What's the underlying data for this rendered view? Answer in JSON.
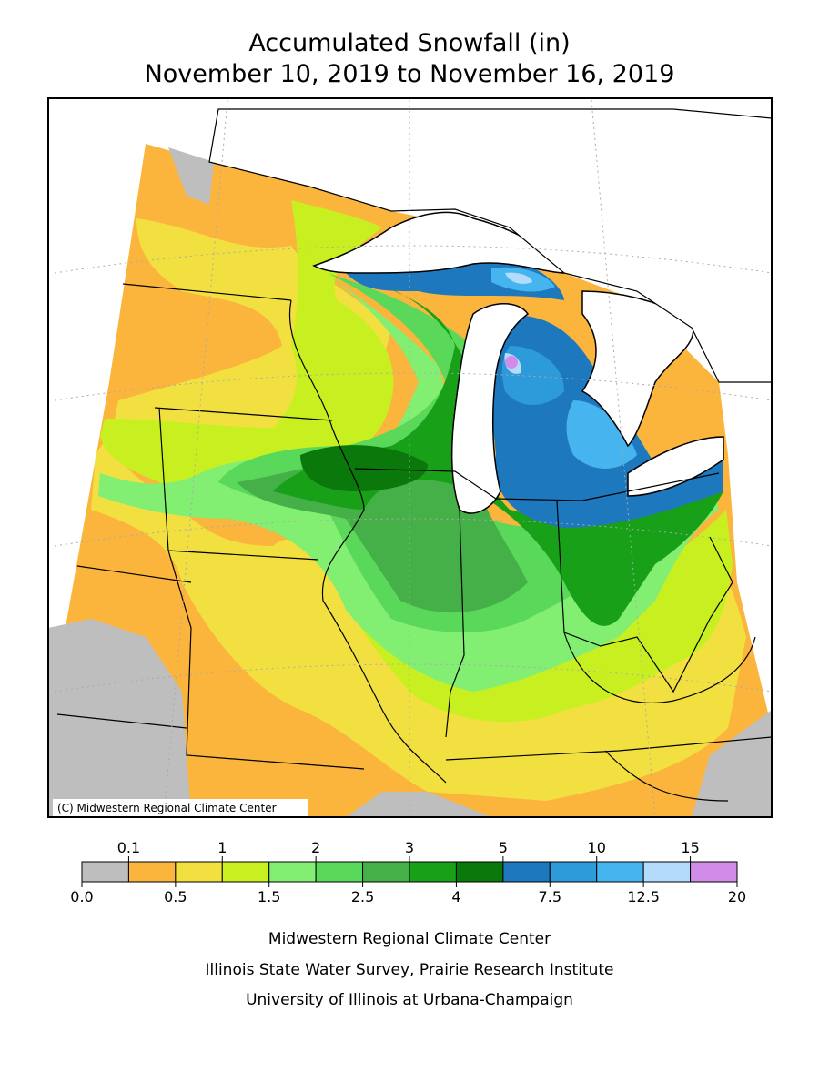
{
  "header": {
    "title": "Accumulated Snowfall (in)",
    "subtitle": "November 10, 2019 to November 16, 2019"
  },
  "map": {
    "copyright": "(C) Midwestern Regional Climate Center"
  },
  "legend": {
    "boundaries": [
      {
        "value": 0,
        "label": "0.0"
      },
      0.1,
      0.5,
      1,
      1.5,
      2,
      2.5,
      3,
      4,
      5,
      7.5,
      10,
      12.5,
      15,
      20
    ],
    "colors": [
      "#bebebe",
      "#fbb43c",
      "#f2e040",
      "#c8f020",
      "#82ee72",
      "#5ad85a",
      "#46b048",
      "#17a018",
      "#0a780a",
      "#1e78be",
      "#2d9ada",
      "#46b4ee",
      "#b4dcfa",
      "#d08ce8"
    ]
  },
  "footer": {
    "lines": [
      "Midwestern Regional Climate Center",
      "Illinois State Water Survey, Prairie Research Institute",
      "University of Illinois at Urbana-Champaign"
    ]
  }
}
